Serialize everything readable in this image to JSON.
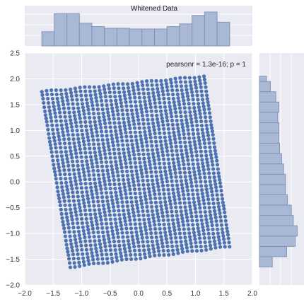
{
  "chart_data": {
    "type": "scatter",
    "title": "Whitened Data",
    "annotation": "pearsonr = 1.3e-16; p = 1",
    "xlim": [
      -2.0,
      2.0
    ],
    "ylim": [
      -2.0,
      2.5
    ],
    "x_ticks": [
      "−2.0",
      "−1.5",
      "−1.0",
      "−0.5",
      "0.0",
      "0.5",
      "1.0",
      "1.5",
      "2.0"
    ],
    "x_tick_values": [
      -2.0,
      -1.5,
      -1.0,
      -0.5,
      0.0,
      0.5,
      1.0,
      1.5,
      2.0
    ],
    "y_ticks": [
      "−2.0",
      "−1.5",
      "−1.0",
      "−0.5",
      "0.0",
      "0.5",
      "1.0",
      "1.5",
      "2.0",
      "2.5"
    ],
    "y_tick_values": [
      -2.0,
      -1.5,
      -1.0,
      -0.5,
      0.0,
      0.5,
      1.0,
      1.5,
      2.0,
      2.5
    ],
    "scatter_region": {
      "shape": "rotated rectangle of dense points",
      "corners": [
        [
          -1.7,
          1.75
        ],
        [
          1.15,
          2.05
        ],
        [
          1.6,
          -1.25
        ],
        [
          -1.2,
          -1.65
        ]
      ]
    },
    "x_hist": {
      "bin_edges": [
        -1.7,
        -1.48,
        -1.26,
        -1.04,
        -0.82,
        -0.6,
        -0.38,
        -0.16,
        0.06,
        0.28,
        0.5,
        0.72,
        0.94,
        1.16,
        1.38,
        1.6
      ],
      "heights": [
        0.42,
        0.95,
        0.95,
        0.67,
        0.57,
        0.52,
        0.52,
        0.5,
        0.5,
        0.5,
        0.57,
        0.65,
        0.9,
        1.0,
        0.7
      ]
    },
    "y_hist": {
      "bin_edges": [
        -1.65,
        -1.45,
        -1.25,
        -1.05,
        -0.85,
        -0.65,
        -0.45,
        -0.25,
        -0.05,
        0.15,
        0.35,
        0.55,
        0.75,
        0.95,
        1.15,
        1.35,
        1.55,
        1.75,
        1.95,
        2.05
      ],
      "widths": [
        0.33,
        0.7,
        0.92,
        0.97,
        0.87,
        0.82,
        0.72,
        0.67,
        0.67,
        0.62,
        0.57,
        0.52,
        0.5,
        0.5,
        0.47,
        0.5,
        0.42,
        0.28,
        0.18
      ]
    },
    "colors": {
      "background": "#EAEAF2",
      "grid": "#FFFFFF",
      "points": "#4C72B0",
      "hist_fill": "#A9B8D5",
      "hist_edge": "#8494BA"
    },
    "grid": true
  }
}
